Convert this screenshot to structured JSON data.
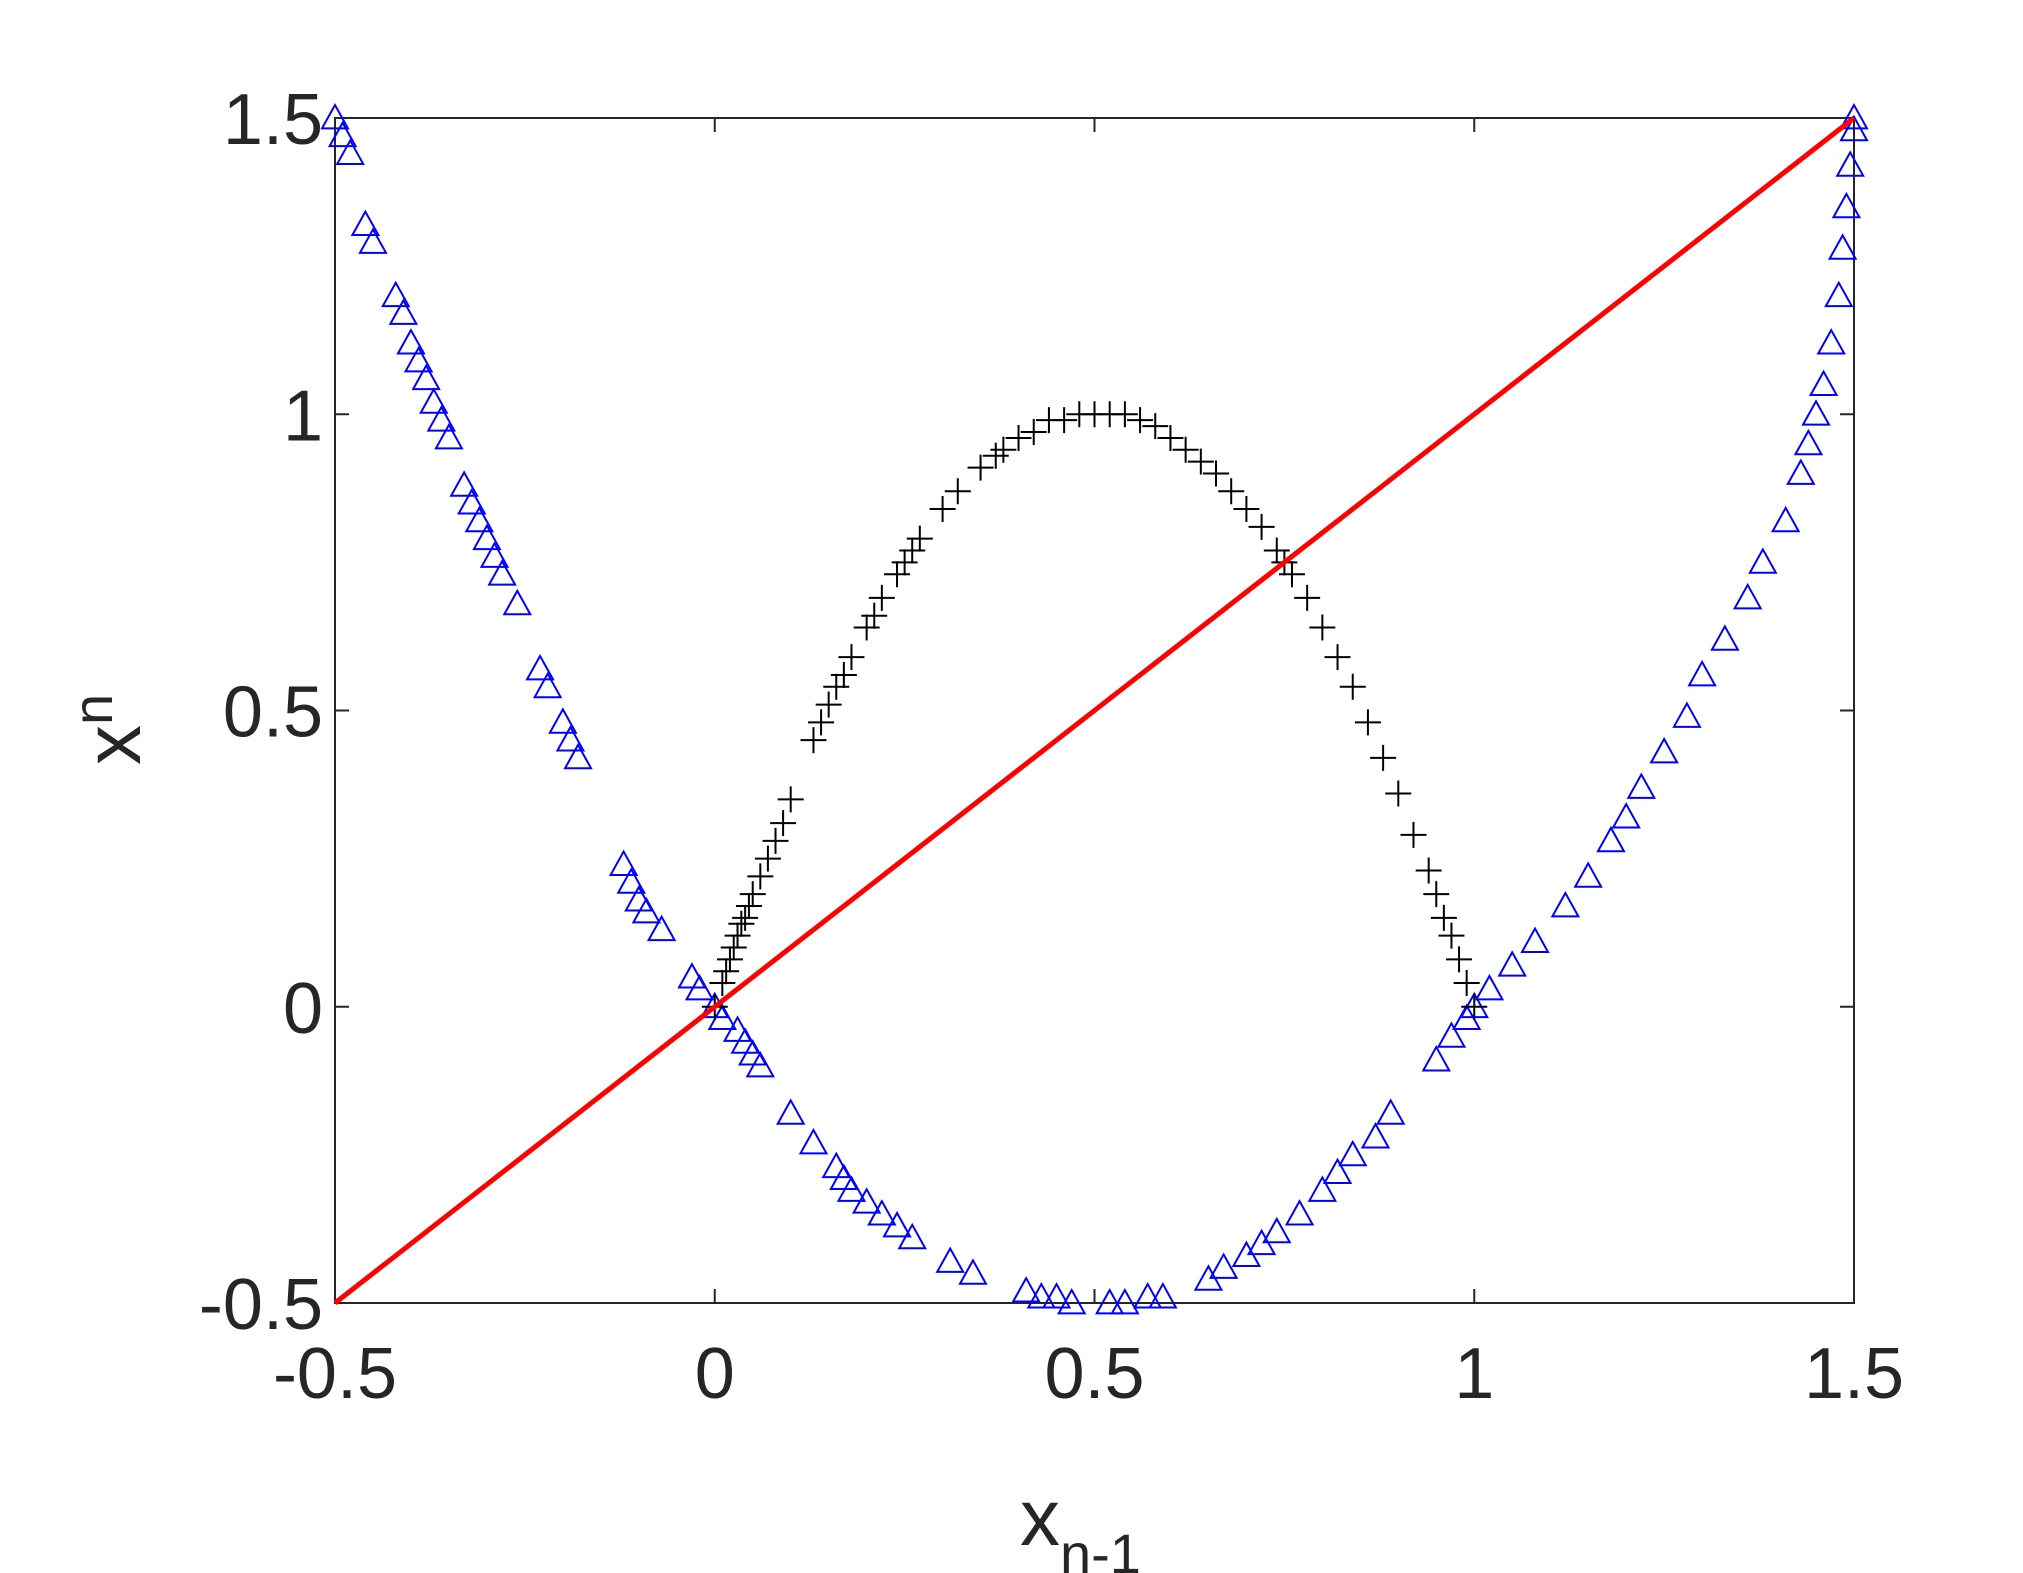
{
  "chart_data": {
    "type": "scatter",
    "xlabel": "x",
    "xlabel_sub": "n-1",
    "ylabel": "x",
    "ylabel_sub": "n",
    "xlim": [
      -0.5,
      1.5
    ],
    "ylim": [
      -0.5,
      1.5
    ],
    "xticks": [
      "-0.5",
      "0",
      "0.5",
      "1",
      "1.5"
    ],
    "yticks": [
      "-0.5",
      "0",
      "0.5",
      "1",
      "1.5"
    ],
    "grid": false,
    "colors": {
      "plus": "#000000",
      "triangle": "#0000ff",
      "line": "#ff0000"
    },
    "series": [
      {
        "marker": "plus",
        "points": [
          [
            0.0,
            0.0
          ],
          [
            0.01,
            0.04
          ],
          [
            0.015,
            0.06
          ],
          [
            0.02,
            0.08
          ],
          [
            0.025,
            0.1
          ],
          [
            0.03,
            0.12
          ],
          [
            0.035,
            0.14
          ],
          [
            0.04,
            0.15
          ],
          [
            0.045,
            0.17
          ],
          [
            0.05,
            0.19
          ],
          [
            0.06,
            0.22
          ],
          [
            0.07,
            0.25
          ],
          [
            0.08,
            0.28
          ],
          [
            0.09,
            0.31
          ],
          [
            0.1,
            0.35
          ],
          [
            0.13,
            0.45
          ],
          [
            0.14,
            0.48
          ],
          [
            0.15,
            0.51
          ],
          [
            0.16,
            0.54
          ],
          [
            0.17,
            0.56
          ],
          [
            0.18,
            0.59
          ],
          [
            0.2,
            0.64
          ],
          [
            0.21,
            0.66
          ],
          [
            0.22,
            0.69
          ],
          [
            0.24,
            0.73
          ],
          [
            0.25,
            0.75
          ],
          [
            0.26,
            0.77
          ],
          [
            0.27,
            0.79
          ],
          [
            0.3,
            0.84
          ],
          [
            0.32,
            0.87
          ],
          [
            0.35,
            0.91
          ],
          [
            0.37,
            0.93
          ],
          [
            0.38,
            0.94
          ],
          [
            0.4,
            0.96
          ],
          [
            0.42,
            0.97
          ],
          [
            0.44,
            0.99
          ],
          [
            0.46,
            0.99
          ],
          [
            0.48,
            1.0
          ],
          [
            0.5,
            1.0
          ],
          [
            0.52,
            1.0
          ],
          [
            0.54,
            1.0
          ],
          [
            0.56,
            0.99
          ],
          [
            0.58,
            0.98
          ],
          [
            0.6,
            0.96
          ],
          [
            0.62,
            0.94
          ],
          [
            0.64,
            0.92
          ],
          [
            0.66,
            0.9
          ],
          [
            0.68,
            0.87
          ],
          [
            0.7,
            0.84
          ],
          [
            0.72,
            0.81
          ],
          [
            0.74,
            0.77
          ],
          [
            0.75,
            0.75
          ],
          [
            0.76,
            0.73
          ],
          [
            0.78,
            0.69
          ],
          [
            0.8,
            0.64
          ],
          [
            0.82,
            0.59
          ],
          [
            0.84,
            0.54
          ],
          [
            0.86,
            0.48
          ],
          [
            0.88,
            0.42
          ],
          [
            0.9,
            0.36
          ],
          [
            0.92,
            0.29
          ],
          [
            0.94,
            0.23
          ],
          [
            0.95,
            0.19
          ],
          [
            0.96,
            0.15
          ],
          [
            0.97,
            0.12
          ],
          [
            0.98,
            0.08
          ],
          [
            0.99,
            0.04
          ],
          [
            1.0,
            0.0
          ]
        ]
      },
      {
        "marker": "triangle",
        "points": [
          [
            -0.5,
            1.5
          ],
          [
            -0.49,
            1.47
          ],
          [
            -0.48,
            1.44
          ],
          [
            -0.46,
            1.32
          ],
          [
            -0.45,
            1.29
          ],
          [
            -0.42,
            1.2
          ],
          [
            -0.41,
            1.17
          ],
          [
            -0.4,
            1.12
          ],
          [
            -0.39,
            1.09
          ],
          [
            -0.38,
            1.06
          ],
          [
            -0.37,
            1.02
          ],
          [
            -0.36,
            0.99
          ],
          [
            -0.35,
            0.96
          ],
          [
            -0.33,
            0.88
          ],
          [
            -0.32,
            0.85
          ],
          [
            -0.31,
            0.82
          ],
          [
            -0.3,
            0.79
          ],
          [
            -0.29,
            0.76
          ],
          [
            -0.28,
            0.73
          ],
          [
            -0.26,
            0.68
          ],
          [
            -0.23,
            0.57
          ],
          [
            -0.22,
            0.54
          ],
          [
            -0.2,
            0.48
          ],
          [
            -0.19,
            0.45
          ],
          [
            -0.18,
            0.42
          ],
          [
            -0.12,
            0.24
          ],
          [
            -0.11,
            0.21
          ],
          [
            -0.1,
            0.18
          ],
          [
            -0.09,
            0.16
          ],
          [
            -0.07,
            0.13
          ],
          [
            -0.03,
            0.05
          ],
          [
            -0.02,
            0.03
          ],
          [
            0.0,
            0.0
          ],
          [
            0.01,
            -0.02
          ],
          [
            0.03,
            -0.04
          ],
          [
            0.04,
            -0.06
          ],
          [
            0.05,
            -0.08
          ],
          [
            0.06,
            -0.1
          ],
          [
            0.1,
            -0.18
          ],
          [
            0.13,
            -0.23
          ],
          [
            0.16,
            -0.27
          ],
          [
            0.17,
            -0.29
          ],
          [
            0.18,
            -0.31
          ],
          [
            0.2,
            -0.33
          ],
          [
            0.22,
            -0.35
          ],
          [
            0.24,
            -0.37
          ],
          [
            0.26,
            -0.39
          ],
          [
            0.31,
            -0.43
          ],
          [
            0.34,
            -0.45
          ],
          [
            0.41,
            -0.48
          ],
          [
            0.43,
            -0.49
          ],
          [
            0.45,
            -0.49
          ],
          [
            0.47,
            -0.5
          ],
          [
            0.52,
            -0.5
          ],
          [
            0.54,
            -0.5
          ],
          [
            0.57,
            -0.49
          ],
          [
            0.59,
            -0.49
          ],
          [
            0.65,
            -0.46
          ],
          [
            0.67,
            -0.44
          ],
          [
            0.7,
            -0.42
          ],
          [
            0.72,
            -0.4
          ],
          [
            0.74,
            -0.38
          ],
          [
            0.77,
            -0.35
          ],
          [
            0.8,
            -0.31
          ],
          [
            0.82,
            -0.28
          ],
          [
            0.84,
            -0.25
          ],
          [
            0.87,
            -0.22
          ],
          [
            0.89,
            -0.18
          ],
          [
            0.95,
            -0.09
          ],
          [
            0.97,
            -0.05
          ],
          [
            0.99,
            -0.02
          ],
          [
            1.0,
            0.0
          ],
          [
            1.02,
            0.03
          ],
          [
            1.05,
            0.07
          ],
          [
            1.08,
            0.11
          ],
          [
            1.12,
            0.17
          ],
          [
            1.15,
            0.22
          ],
          [
            1.18,
            0.28
          ],
          [
            1.2,
            0.32
          ],
          [
            1.22,
            0.37
          ],
          [
            1.25,
            0.43
          ],
          [
            1.28,
            0.49
          ],
          [
            1.3,
            0.56
          ],
          [
            1.33,
            0.62
          ],
          [
            1.36,
            0.69
          ],
          [
            1.38,
            0.75
          ],
          [
            1.41,
            0.82
          ],
          [
            1.43,
            0.9
          ],
          [
            1.44,
            0.95
          ],
          [
            1.45,
            1.0
          ],
          [
            1.46,
            1.05
          ],
          [
            1.47,
            1.12
          ],
          [
            1.48,
            1.2
          ],
          [
            1.485,
            1.28
          ],
          [
            1.49,
            1.35
          ],
          [
            1.495,
            1.42
          ],
          [
            1.5,
            1.48
          ],
          [
            1.5,
            1.5
          ]
        ]
      }
    ],
    "reference_line": {
      "style": "solid",
      "x": [
        -0.5,
        1.5
      ],
      "y": [
        -0.5,
        1.5
      ]
    }
  }
}
